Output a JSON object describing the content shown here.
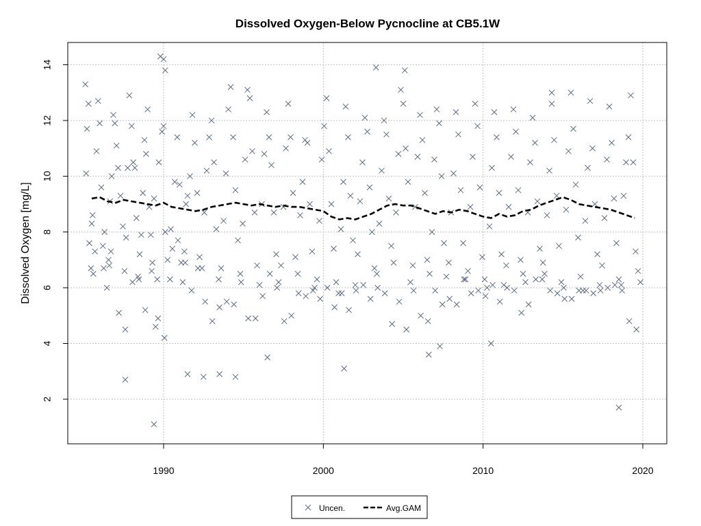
{
  "colors": {
    "points": "#5a6a80",
    "gam": "#000000",
    "grid": "#c0c0c0"
  },
  "chart_data": {
    "type": "scatter",
    "title": "Dissolved Oxygen-Below Pycnocline at CB5.1W",
    "xlabel": "",
    "ylabel": "Dissolved Oxygen [mg/L]",
    "xlim": [
      1984,
      2021.5
    ],
    "ylim": [
      0.4,
      14.8
    ],
    "x_ticks": [
      1990,
      2000,
      2010,
      2020
    ],
    "y_ticks": [
      2,
      4,
      6,
      8,
      10,
      12,
      14
    ],
    "grid": true,
    "legend": {
      "position": "bottom",
      "entries": [
        {
          "label": "Uncen.",
          "marker": "x"
        },
        {
          "label": "Avg.GAM",
          "marker": "dashed-line"
        }
      ]
    },
    "series": [
      {
        "name": "Uncen.",
        "kind": "scatter",
        "marker": "x",
        "x": [
          1985.1,
          1985.2,
          1985.3,
          1985.35,
          1985.45,
          1985.5,
          1985.6,
          1985.7,
          1985.8,
          1985.9,
          1986.0,
          1986.1,
          1986.2,
          1986.3,
          1986.45,
          1986.55,
          1986.6,
          1986.65,
          1986.75,
          1986.85,
          1986.95,
          1987.05,
          1987.15,
          1987.3,
          1987.45,
          1987.55,
          1987.65,
          1987.75,
          1987.85,
          1988.0,
          1988.1,
          1988.2,
          1988.3,
          1988.4,
          1988.5,
          1988.6,
          1988.7,
          1988.8,
          1988.9,
          1989.0,
          1989.1,
          1989.2,
          1989.3,
          1989.4,
          1989.5,
          1989.6,
          1989.7,
          1989.8,
          1989.9,
          1990.0,
          1990.1,
          1990.25,
          1990.4,
          1990.55,
          1990.7,
          1990.85,
          1991.0,
          1991.1,
          1991.2,
          1991.3,
          1991.4,
          1991.5,
          1991.65,
          1991.8,
          1991.95,
          1992.1,
          1992.25,
          1992.4,
          1992.55,
          1992.7,
          1992.85,
          1993.0,
          1993.15,
          1993.3,
          1993.45,
          1993.6,
          1993.75,
          1993.9,
          1994.05,
          1994.2,
          1994.35,
          1994.5,
          1994.65,
          1994.8,
          1994.95,
          1995.1,
          1995.25,
          1995.4,
          1995.55,
          1995.7,
          1995.85,
          1996.0,
          1996.15,
          1996.3,
          1996.45,
          1996.6,
          1996.75,
          1996.9,
          1997.05,
          1997.2,
          1997.35,
          1997.5,
          1997.65,
          1997.8,
          1997.95,
          1998.1,
          1998.25,
          1998.4,
          1998.55,
          1998.7,
          1998.85,
          1999.0,
          1999.15,
          1999.3,
          1999.45,
          1999.6,
          1999.75,
          1999.9,
          2000.05,
          2000.2,
          2000.35,
          2000.5,
          2000.65,
          2000.8,
          2000.95,
          2001.1,
          2001.25,
          2001.4,
          2001.55,
          2001.7,
          2001.85,
          2002.0,
          2002.15,
          2002.3,
          2002.45,
          2002.6,
          2002.75,
          2002.9,
          2003.05,
          2003.2,
          2003.35,
          2003.5,
          2003.65,
          2003.8,
          2003.95,
          2004.1,
          2004.25,
          2004.4,
          2004.55,
          2004.7,
          2004.85,
          2005.0,
          2005.15,
          2005.3,
          2005.45,
          2005.6,
          2005.75,
          2005.9,
          2006.05,
          2006.2,
          2006.35,
          2006.5,
          2006.65,
          2006.8,
          2006.95,
          2007.1,
          2007.25,
          2007.4,
          2007.55,
          2007.7,
          2007.85,
          2008.0,
          2008.15,
          2008.3,
          2008.45,
          2008.6,
          2008.75,
          2008.9,
          2009.05,
          2009.2,
          2009.35,
          2009.5,
          2009.65,
          2009.8,
          2009.95,
          2010.1,
          2010.25,
          2010.4,
          2010.55,
          2010.7,
          2010.85,
          2011.0,
          2011.15,
          2011.3,
          2011.45,
          2011.6,
          2011.75,
          2011.9,
          2012.05,
          2012.2,
          2012.35,
          2012.5,
          2012.65,
          2012.8,
          2012.95,
          2013.1,
          2013.25,
          2013.4,
          2013.55,
          2013.7,
          2013.85,
          2014.0,
          2014.15,
          2014.3,
          2014.45,
          2014.6,
          2014.75,
          2014.9,
          2015.05,
          2015.2,
          2015.35,
          2015.5,
          2015.65,
          2015.8,
          2015.95,
          2016.1,
          2016.25,
          2016.4,
          2016.55,
          2016.7,
          2016.85,
          2017.0,
          2017.15,
          2017.3,
          2017.45,
          2017.6,
          2017.75,
          2017.9,
          2018.05,
          2018.2,
          2018.35,
          2018.5,
          2018.65,
          2018.8,
          2018.95,
          2019.1,
          2019.25,
          2019.4,
          2019.55,
          2019.7,
          2019.85,
          1985.15,
          1985.55,
          1986.25,
          1986.7,
          1987.2,
          1987.6,
          1988.05,
          1988.45,
          1988.85,
          1989.25,
          1989.65,
          1990.05,
          1990.45,
          1990.9,
          1991.35,
          1991.75,
          1992.15,
          1992.6,
          1993.05,
          1993.5,
          1993.95,
          1994.4,
          1994.85,
          1995.3,
          1995.75,
          1996.2,
          1996.65,
          1997.1,
          1997.55,
          1998.0,
          1998.45,
          1998.9,
          1999.35,
          1999.8,
          2000.25,
          2000.7,
          2001.15,
          2001.6,
          2002.05,
          2002.5,
          2002.95,
          2003.4,
          2003.85,
          2004.3,
          2004.75,
          2005.2,
          2005.65,
          2006.1,
          2006.55,
          2007.0,
          2007.45,
          2007.9,
          2008.35,
          2008.8,
          2009.25,
          2009.7,
          2010.15,
          2010.6,
          2011.05,
          2011.5,
          2011.95,
          2012.4,
          2012.85,
          2013.3,
          2013.75,
          2014.2,
          2014.65,
          2015.1,
          2015.55,
          2016.0,
          2016.45,
          2016.9,
          2017.35,
          2017.8,
          2018.25,
          2018.7,
          2019.15,
          2019.6,
          1989.4,
          1987.6,
          1991.5,
          1992.5,
          1993.5,
          1994.5,
          1996.5,
          2001.3,
          2006.6,
          2007.3,
          2010.5,
          2018.5,
          1990.0,
          1990.1,
          2003.3,
          2005.1,
          2014.3
        ],
        "y": [
          13.3,
          11.7,
          12.6,
          7.6,
          6.7,
          8.3,
          6.5,
          7.3,
          10.9,
          12.7,
          11.9,
          9.6,
          7.5,
          8.0,
          6.0,
          7.0,
          6.8,
          9.1,
          10.0,
          12.2,
          11.9,
          11.1,
          10.3,
          9.3,
          8.2,
          6.6,
          7.8,
          10.3,
          12.9,
          11.8,
          10.5,
          10.3,
          8.5,
          6.4,
          7.2,
          7.9,
          9.4,
          11.3,
          10.8,
          12.4,
          8.9,
          7.9,
          6.9,
          9.2,
          4.6,
          6.3,
          10.5,
          14.3,
          11.6,
          11.8,
          8.0,
          7.0,
          6.3,
          7.4,
          9.8,
          11.4,
          9.7,
          6.9,
          6.2,
          7.3,
          9.0,
          9.3,
          10.0,
          12.2,
          11.2,
          9.4,
          7.1,
          6.7,
          8.7,
          10.2,
          11.4,
          12.0,
          10.5,
          8.1,
          6.3,
          6.7,
          8.4,
          10.1,
          12.4,
          13.2,
          11.4,
          9.5,
          7.7,
          6.5,
          8.3,
          10.6,
          13.1,
          12.8,
          10.9,
          8.7,
          6.8,
          6.1,
          9.0,
          10.8,
          12.3,
          11.4,
          10.4,
          8.7,
          7.2,
          6.2,
          6.8,
          8.9,
          11.0,
          12.6,
          11.4,
          9.4,
          7.1,
          6.5,
          8.6,
          9.8,
          11.3,
          11.2,
          9.0,
          7.3,
          6.0,
          6.3,
          8.4,
          10.6,
          11.8,
          12.8,
          10.9,
          9.0,
          7.4,
          6.2,
          5.8,
          8.1,
          9.8,
          12.5,
          11.4,
          9.3,
          7.7,
          6.1,
          7.2,
          9.1,
          10.5,
          12.1,
          11.6,
          9.6,
          8.0,
          6.7,
          6.5,
          8.3,
          10.2,
          12.0,
          11.5,
          9.2,
          7.5,
          6.9,
          8.7,
          10.8,
          13.1,
          12.6,
          11.0,
          9.8,
          6.2,
          6.8,
          8.9,
          10.7,
          12.2,
          11.3,
          9.4,
          7.0,
          6.5,
          8.0,
          10.6,
          12.4,
          11.9,
          10.0,
          7.6,
          6.4,
          6.9,
          8.7,
          10.1,
          12.3,
          11.5,
          9.5,
          7.6,
          6.3,
          6.6,
          8.9,
          10.7,
          12.6,
          11.8,
          9.6,
          7.1,
          6.3,
          6.0,
          8.2,
          10.3,
          12.3,
          11.4,
          9.4,
          7.2,
          6.1,
          6.8,
          8.9,
          10.7,
          12.4,
          11.6,
          9.5,
          7.0,
          6.5,
          6.2,
          8.7,
          10.5,
          12.1,
          11.2,
          9.1,
          7.4,
          6.3,
          6.5,
          8.6,
          10.2,
          12.6,
          11.3,
          9.3,
          7.5,
          6.2,
          6.0,
          8.8,
          10.9,
          13.0,
          11.7,
          9.7,
          7.8,
          6.4,
          5.9,
          8.4,
          10.3,
          12.7,
          11.0,
          9.0,
          7.2,
          6.1,
          6.8,
          8.5,
          10.6,
          12.5,
          11.2,
          9.2,
          7.6,
          6.3,
          6.1,
          9.3,
          10.5,
          11.4,
          12.9,
          10.5,
          7.3,
          6.6,
          6.2,
          10.1,
          8.6,
          6.7,
          7.3,
          5.1,
          4.5,
          6.2,
          6.3,
          5.2,
          6.6,
          4.9,
          4.2,
          8.1,
          7.7,
          6.9,
          5.9,
          6.7,
          5.5,
          4.8,
          5.3,
          5.5,
          5.4,
          6.2,
          4.9,
          4.9,
          5.7,
          6.5,
          6.0,
          4.8,
          5.0,
          5.8,
          5.7,
          5.9,
          5.6,
          6.0,
          5.3,
          5.8,
          5.2,
          5.9,
          6.1,
          5.6,
          6.0,
          5.8,
          4.7,
          5.5,
          4.5,
          5.9,
          5.0,
          4.8,
          5.9,
          5.4,
          5.6,
          5.4,
          6.3,
          5.8,
          5.9,
          5.7,
          6.1,
          5.5,
          6.0,
          5.9,
          5.1,
          5.4,
          6.3,
          6.9,
          5.9,
          5.8,
          5.6,
          5.6,
          5.9,
          5.9,
          5.8,
          5.9,
          6.0,
          6.1,
          5.9,
          4.8,
          4.5,
          1.1,
          2.7,
          2.9,
          2.8,
          2.9,
          2.8,
          3.5,
          3.1,
          3.6,
          3.9,
          4.0,
          1.7,
          14.2,
          13.8,
          13.9,
          13.8,
          13.0
        ]
      },
      {
        "name": "Avg.GAM",
        "kind": "line",
        "style": "dashed",
        "x": [
          1985.5,
          1986,
          1986.5,
          1987,
          1987.5,
          1988,
          1988.5,
          1989,
          1989.5,
          1990,
          1990.5,
          1991,
          1991.5,
          1992,
          1992.5,
          1993,
          1993.5,
          1994,
          1994.5,
          1995,
          1995.5,
          1996,
          1996.5,
          1997,
          1997.5,
          1998,
          1998.5,
          1999,
          1999.5,
          2000,
          2000.5,
          2001,
          2001.5,
          2002,
          2002.5,
          2003,
          2003.5,
          2004,
          2004.5,
          2005,
          2005.5,
          2006,
          2006.5,
          2007,
          2007.5,
          2008,
          2008.5,
          2009,
          2009.5,
          2010,
          2010.5,
          2011,
          2011.5,
          2012,
          2012.5,
          2013,
          2013.5,
          2014,
          2014.5,
          2015,
          2015.5,
          2016,
          2016.5,
          2017,
          2017.5,
          2018,
          2018.5,
          2019,
          2019.5
        ],
        "y": [
          9.2,
          9.25,
          9.1,
          9.05,
          9.15,
          9.1,
          9.05,
          9.0,
          8.95,
          9.05,
          8.9,
          8.85,
          8.8,
          8.75,
          8.8,
          8.9,
          8.95,
          9.0,
          9.05,
          9.0,
          8.95,
          9.0,
          8.95,
          8.9,
          8.95,
          8.9,
          8.9,
          8.85,
          8.8,
          8.75,
          8.55,
          8.45,
          8.5,
          8.45,
          8.55,
          8.65,
          8.8,
          8.95,
          9.0,
          8.95,
          8.95,
          8.85,
          8.75,
          8.65,
          8.75,
          8.7,
          8.8,
          8.75,
          8.65,
          8.55,
          8.5,
          8.65,
          8.55,
          8.6,
          8.75,
          8.8,
          8.95,
          9.05,
          9.15,
          9.25,
          9.15,
          9.0,
          8.95,
          8.9,
          8.85,
          8.8,
          8.7,
          8.6,
          8.5
        ]
      }
    ]
  }
}
